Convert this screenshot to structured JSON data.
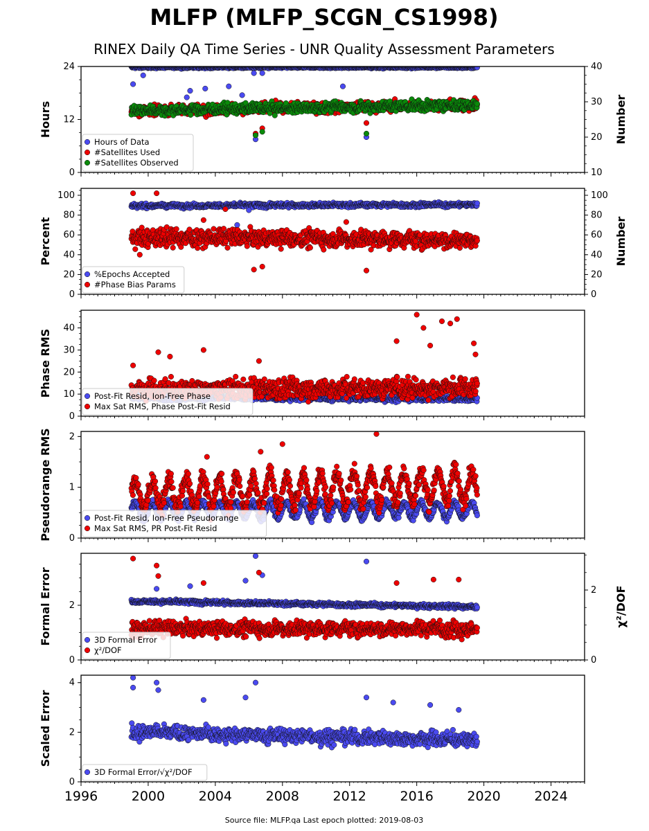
{
  "figure": {
    "title": "MLFP (MLFP_SCGN_CS1998)",
    "subtitle": "RINEX Daily QA Time Series - UNR Quality Assessment Parameters",
    "footer": "Source file: MLFP.qa Last epoch plotted: 2019-08-03"
  },
  "colors": {
    "blue": "#4a4af0",
    "red": "#ee0000",
    "green": "#0a8a0a",
    "edge": "#111111"
  },
  "chart_data": [
    {
      "type": "scatter",
      "ylabel": "Hours",
      "ylim": [
        0,
        24
      ],
      "yticks": [
        0,
        12,
        24
      ],
      "y2label": "Number",
      "y2lim": [
        10,
        40
      ],
      "y2ticks": [
        10,
        20,
        30,
        40
      ],
      "xlim": [
        1996,
        2026
      ],
      "legend_loc": "lower-left",
      "series": [
        {
          "name": "Hours of Data",
          "color": "blue",
          "axis": "left",
          "x_start": 1999.0,
          "x_end": 2019.6,
          "base": 23.8,
          "noise": 0.15,
          "trend": 0,
          "outliers": [
            [
              1999.1,
              20.0
            ],
            [
              1999.7,
              22.0
            ],
            [
              2002.3,
              17.0
            ],
            [
              2002.5,
              18.5
            ],
            [
              2003.4,
              19.0
            ],
            [
              2004.8,
              19.5
            ],
            [
              2005.6,
              17.5
            ],
            [
              2006.3,
              22.5
            ],
            [
              2006.4,
              7.5
            ],
            [
              2006.8,
              22.5
            ],
            [
              2011.6,
              19.5
            ],
            [
              2013.0,
              8.0
            ]
          ]
        },
        {
          "name": "#Satellites Used",
          "color": "red",
          "axis": "right",
          "x_start": 1999.0,
          "x_end": 2019.6,
          "base": 27.5,
          "noise": 1.0,
          "trend": 0.08,
          "outliers": [
            [
              2006.4,
              21.0
            ],
            [
              2006.8,
              22.5
            ],
            [
              2013.0,
              24.0
            ]
          ]
        },
        {
          "name": "#Satellites Observed",
          "color": "green",
          "axis": "right",
          "x_start": 1999.0,
          "x_end": 2019.6,
          "base": 27.5,
          "noise": 1.0,
          "trend": 0.08,
          "outliers": [
            [
              2006.4,
              20.5
            ],
            [
              2006.8,
              21.5
            ],
            [
              2013.0,
              21.0
            ]
          ]
        }
      ]
    },
    {
      "type": "scatter",
      "ylabel": "Percent",
      "ylim": [
        0,
        107
      ],
      "yticks": [
        0,
        20,
        40,
        60,
        80,
        100
      ],
      "y2label": "Number",
      "y2lim": [
        0,
        107
      ],
      "y2ticks": [
        0,
        20,
        40,
        60,
        80,
        100
      ],
      "xlim": [
        1996,
        2026
      ],
      "legend_loc": "lower-left",
      "series": [
        {
          "name": "%Epochs Accepted",
          "color": "blue",
          "axis": "left",
          "x_start": 1999.0,
          "x_end": 2019.6,
          "base": 89.5,
          "noise": 1.5,
          "trend": 0.05,
          "outliers": [
            [
              2005.3,
              70.0
            ],
            [
              2006.0,
              85.0
            ]
          ]
        },
        {
          "name": "#Phase Bias Params",
          "color": "red",
          "axis": "right",
          "x_start": 1999.0,
          "x_end": 2019.6,
          "base": 58,
          "noise": 6,
          "trend": -0.15,
          "outliers": [
            [
              1999.1,
              102
            ],
            [
              2000.5,
              102
            ],
            [
              1999.5,
              40
            ],
            [
              2004.6,
              86
            ],
            [
              2006.3,
              25
            ],
            [
              2006.8,
              28
            ],
            [
              2013.0,
              24
            ],
            [
              2011.8,
              73
            ],
            [
              2003.3,
              75
            ]
          ]
        }
      ]
    },
    {
      "type": "scatter",
      "ylabel": "Phase RMS",
      "ylim": [
        0,
        48
      ],
      "yticks": [
        0,
        10,
        20,
        30,
        40
      ],
      "xlim": [
        1996,
        2026
      ],
      "legend_loc": "lower-left",
      "series": [
        {
          "name": "Post-Fit Resid, Ion-Free Phase",
          "color": "blue",
          "axis": "left",
          "x_start": 1999.0,
          "x_end": 2019.6,
          "base": 8.5,
          "noise": 0.8,
          "trend": -0.03,
          "outliers": []
        },
        {
          "name": "Max Sat RMS, Phase Post-Fit Resid",
          "color": "red",
          "axis": "left",
          "x_start": 1999.0,
          "x_end": 2019.6,
          "base": 12,
          "noise": 3,
          "trend": 0.05,
          "outliers": [
            [
              1999.1,
              23
            ],
            [
              2000.6,
              29
            ],
            [
              2001.3,
              27
            ],
            [
              2003.3,
              30
            ],
            [
              2006.6,
              25
            ],
            [
              2014.8,
              34
            ],
            [
              2016.0,
              46
            ],
            [
              2016.4,
              40
            ],
            [
              2016.8,
              32
            ],
            [
              2017.5,
              43
            ],
            [
              2018.0,
              42
            ],
            [
              2018.4,
              44
            ],
            [
              2019.4,
              33
            ],
            [
              2019.5,
              28
            ]
          ]
        }
      ]
    },
    {
      "type": "scatter",
      "ylabel": "Pseudorange RMS",
      "ylim": [
        0,
        2.1
      ],
      "yticks": [
        0,
        1,
        2
      ],
      "xlim": [
        1996,
        2026
      ],
      "legend_loc": "lower-left",
      "series": [
        {
          "name": "Post-Fit Resid, Ion-Free Pseudorange",
          "color": "blue",
          "axis": "left",
          "x_start": 1999.0,
          "x_end": 2019.6,
          "base": 0.55,
          "noise": 0.05,
          "trend": 0,
          "seasonal": 0.15,
          "outliers": []
        },
        {
          "name": "Max Sat RMS, PR Post-Fit Resid",
          "color": "red",
          "axis": "left",
          "x_start": 1999.0,
          "x_end": 2019.6,
          "base": 0.85,
          "noise": 0.12,
          "trend": 0.01,
          "seasonal": 0.3,
          "outliers": [
            [
              2000.3,
              1.2
            ],
            [
              2003.5,
              1.6
            ],
            [
              2006.7,
              1.7
            ],
            [
              2008.0,
              1.85
            ],
            [
              2013.6,
              2.05
            ]
          ]
        }
      ]
    },
    {
      "type": "scatter",
      "ylabel": "Formal Error",
      "ylim": [
        0,
        3.9
      ],
      "yticks": [
        0,
        2
      ],
      "y2label": "χ²/DOF",
      "y2lim": [
        0,
        3.05
      ],
      "y2ticks": [
        0,
        2
      ],
      "xlim": [
        1996,
        2026
      ],
      "legend_loc": "lower-left",
      "series": [
        {
          "name": "3D Formal Error",
          "color": "blue",
          "axis": "left",
          "x_start": 1999.0,
          "x_end": 2019.6,
          "base": 2.15,
          "noise": 0.05,
          "trend": -0.01,
          "outliers": [
            [
              2000.5,
              2.6
            ],
            [
              2002.5,
              2.7
            ],
            [
              2005.8,
              2.9
            ],
            [
              2006.4,
              3.8
            ],
            [
              2006.8,
              3.1
            ],
            [
              2013.0,
              3.6
            ]
          ]
        },
        {
          "name": "χ²/DOF",
          "color": "red",
          "axis": "right",
          "x_start": 1999.0,
          "x_end": 2019.6,
          "base": 0.9,
          "noise": 0.15,
          "trend": 0,
          "outliers": [
            [
              1999.1,
              2.9
            ],
            [
              2000.5,
              2.7
            ],
            [
              2000.6,
              2.4
            ],
            [
              2003.3,
              2.2
            ],
            [
              2006.6,
              2.5
            ],
            [
              2014.8,
              2.2
            ],
            [
              2017.0,
              2.3
            ],
            [
              2018.5,
              2.3
            ]
          ]
        }
      ]
    },
    {
      "type": "scatter",
      "ylabel": "Scaled Error",
      "ylim": [
        0,
        4.3
      ],
      "yticks": [
        0,
        2,
        4
      ],
      "xlim": [
        1996,
        2026
      ],
      "xticks": [
        1996,
        2000,
        2004,
        2008,
        2012,
        2016,
        2020,
        2024
      ],
      "legend_loc": "lower-left",
      "series": [
        {
          "name": "3D Formal Error/√χ²/DOF",
          "color": "blue",
          "axis": "left",
          "x_start": 1999.0,
          "x_end": 2019.6,
          "base": 2.0,
          "noise": 0.2,
          "trend": -0.015,
          "outliers": [
            [
              1999.1,
              4.2
            ],
            [
              1999.1,
              3.8
            ],
            [
              2000.5,
              4.0
            ],
            [
              2000.6,
              3.7
            ],
            [
              2003.3,
              3.3
            ],
            [
              2005.8,
              3.4
            ],
            [
              2006.4,
              4.0
            ],
            [
              2013.0,
              3.4
            ],
            [
              2014.6,
              3.2
            ],
            [
              2016.8,
              3.1
            ],
            [
              2018.5,
              2.9
            ]
          ]
        }
      ]
    }
  ]
}
